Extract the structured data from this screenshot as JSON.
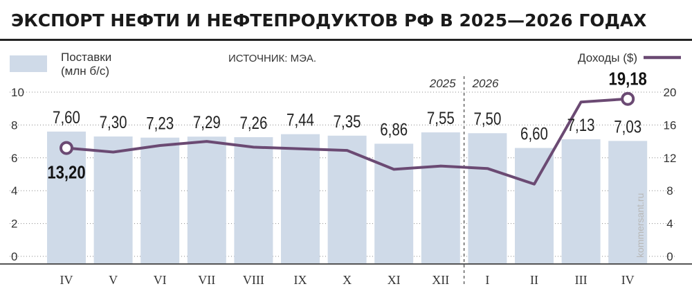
{
  "title": "ЭКСПОРТ НЕФТИ И НЕФТЕПРОДУКТОВ РФ В 2025—2026 ГОДАХ",
  "source": "ИСТОЧНИК: МЭА.",
  "credit": "kommersant.ru",
  "legend": {
    "bars_line1": "Поставки",
    "bars_line2": "(млн б/с)",
    "line_label": "Доходы ($)"
  },
  "colors": {
    "bar": "#cfdae8",
    "line": "#6b4a73",
    "title_rule": "#222222",
    "grid": "#888888"
  },
  "chart_data": {
    "type": "bar",
    "categories": [
      "IV",
      "V",
      "VI",
      "VII",
      "VIII",
      "IX",
      "X",
      "XI",
      "XII",
      "I",
      "II",
      "III",
      "IV"
    ],
    "year_labels": [
      {
        "text": "2025",
        "side": "left"
      },
      {
        "text": "2026",
        "side": "right"
      }
    ],
    "year_divider_after_index": 8,
    "left_axis": {
      "ticks": [
        "10",
        "8",
        "6",
        "4",
        "2",
        "0"
      ],
      "ylim": [
        0,
        10
      ]
    },
    "right_axis": {
      "ticks": [
        "20",
        "16",
        "12",
        "8",
        "4",
        "0"
      ],
      "ylim": [
        0,
        20
      ]
    },
    "bar_labels": [
      "7,60",
      "7,30",
      "7,23",
      "7,29",
      "7,26",
      "7,44",
      "7,35",
      "6,86",
      "7,55",
      "7,50",
      "6,60",
      "7,13",
      "7,03"
    ],
    "series": [
      {
        "name": "Поставки (млн б/с)",
        "kind": "bar",
        "axis": "left",
        "values": [
          7.6,
          7.3,
          7.23,
          7.29,
          7.26,
          7.44,
          7.35,
          6.86,
          7.55,
          7.5,
          6.6,
          7.13,
          7.03
        ]
      },
      {
        "name": "Доходы ($)",
        "kind": "line",
        "axis": "right",
        "values": [
          13.2,
          12.7,
          13.5,
          14.0,
          13.3,
          13.1,
          12.9,
          10.6,
          11.0,
          10.7,
          8.8,
          18.8,
          19.18
        ]
      }
    ],
    "line_callouts": [
      {
        "index": 0,
        "label": "13,20",
        "position": "below"
      },
      {
        "index": 12,
        "label": "19,18",
        "position": "above"
      }
    ]
  }
}
